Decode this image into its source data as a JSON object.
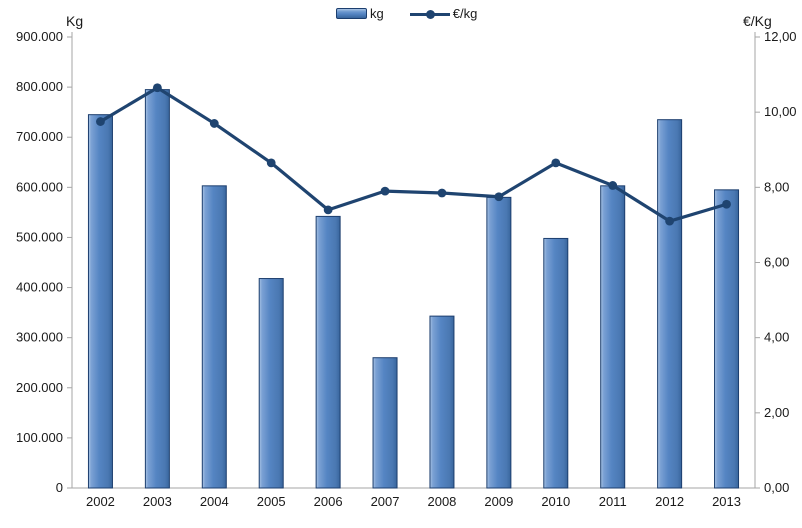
{
  "chart_data": {
    "type": "bar",
    "subtype": "combo-bar-line-dual-axis",
    "title": "",
    "categories": [
      "2002",
      "2003",
      "2004",
      "2005",
      "2006",
      "2007",
      "2008",
      "2009",
      "2010",
      "2011",
      "2012",
      "2013"
    ],
    "series": [
      {
        "name": "kg",
        "type": "bar",
        "axis": "left",
        "values": [
          745000,
          795000,
          603000,
          418000,
          542000,
          260000,
          343000,
          580000,
          498000,
          603000,
          735000,
          595000
        ]
      },
      {
        "name": "€/kg",
        "type": "line",
        "axis": "right",
        "values": [
          9.75,
          10.65,
          9.7,
          8.65,
          7.4,
          7.9,
          7.85,
          7.75,
          8.65,
          8.05,
          7.1,
          7.55
        ]
      }
    ],
    "left_axis": {
      "title": "Kg",
      "min": 0,
      "max": 900000,
      "step": 100000,
      "tick_labels": [
        "0",
        "100.000",
        "200.000",
        "300.000",
        "400.000",
        "500.000",
        "600.000",
        "700.000",
        "800.000",
        "900.000"
      ]
    },
    "right_axis": {
      "title": "€/Kg",
      "min": 0,
      "max": 12,
      "step": 2,
      "tick_labels": [
        "0,00",
        "2,00",
        "4,00",
        "6,00",
        "8,00",
        "10,00",
        "12,00"
      ]
    },
    "legend": {
      "position": "top-center",
      "items": [
        {
          "label": "kg",
          "marker": "bar-swatch-icon"
        },
        {
          "label": "€/kg",
          "marker": "line-marker-icon"
        }
      ]
    },
    "grid": "off",
    "colors": {
      "bar_fill": "#5585c3",
      "bar_fill_light": "#a9c4e4",
      "bar_fill_dark": "#38659c",
      "bar_border": "#1c3e6e",
      "line": "#1f4470",
      "axis_line": "#a6a6a6",
      "tick_text": "#1a1a1a"
    }
  }
}
